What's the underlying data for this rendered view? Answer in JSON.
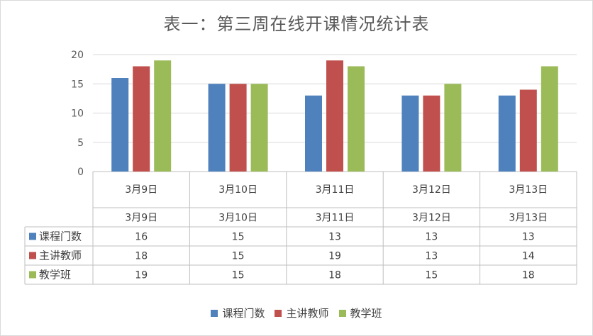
{
  "chart_data": {
    "type": "bar",
    "title": "表一：第三周在线开课情况统计表",
    "categories": [
      "3月9日",
      "3月10日",
      "3月11日",
      "3月12日",
      "3月13日"
    ],
    "series": [
      {
        "name": "课程门数",
        "color": "#4F81BD",
        "values": [
          16,
          15,
          13,
          13,
          13
        ]
      },
      {
        "name": "主讲教师",
        "color": "#C0504D",
        "values": [
          18,
          15,
          19,
          13,
          14
        ]
      },
      {
        "name": "教学班",
        "color": "#9BBB59",
        "values": [
          19,
          15,
          18,
          15,
          18
        ]
      }
    ],
    "ylim": [
      0,
      20
    ],
    "yticks": [
      0,
      5,
      10,
      15,
      20
    ],
    "data_table": true,
    "legend": "bottom"
  }
}
